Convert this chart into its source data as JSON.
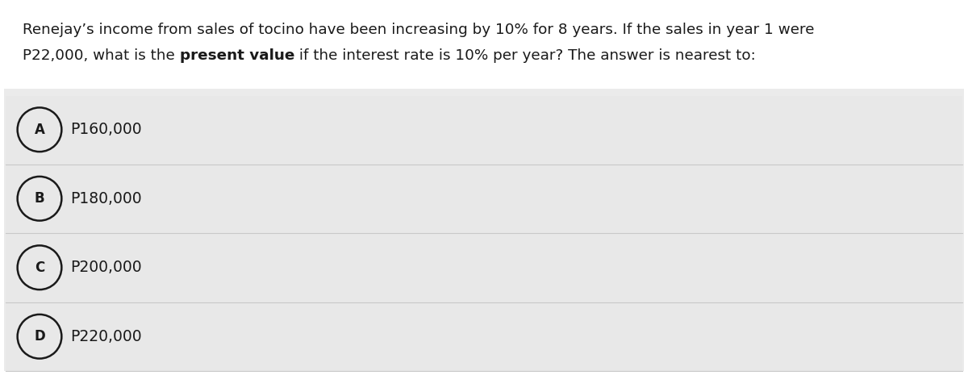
{
  "question_line1": "Renejay’s income from sales of tocino have been increasing by 10% for 8 years. If the sales in year 1 were",
  "question_line2_normal1": "P22,000, what is the ",
  "question_line2_bold": "present value",
  "question_line2_normal2": " if the interest rate is 10% per year? The answer is nearest to:",
  "options": [
    "A",
    "B",
    "C",
    "D"
  ],
  "option_texts": [
    "P160,000",
    "P180,000",
    "P200,000",
    "P220,000"
  ],
  "bg_color": "#ebebeb",
  "option_bg_color": "#e8e8e8",
  "text_color": "#1a1a1a",
  "font_size_question": 13.2,
  "font_size_option": 13.5,
  "figure_bg": "#ffffff",
  "fig_width": 12.0,
  "fig_height": 4.65,
  "dpi": 100
}
